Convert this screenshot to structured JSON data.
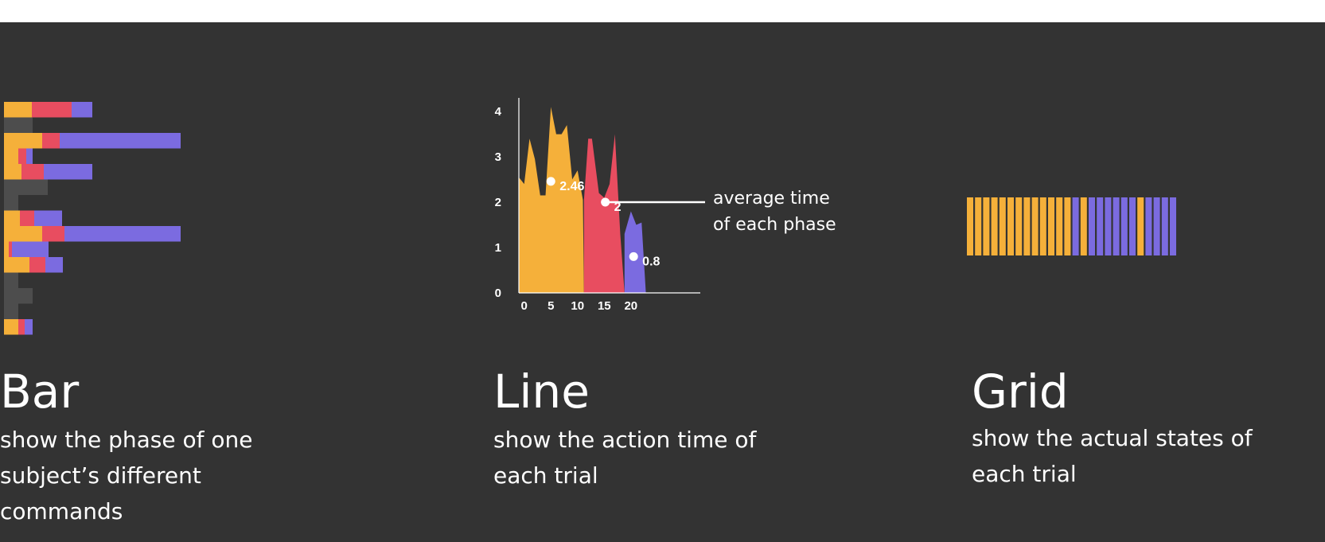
{
  "colors": {
    "background": "#333333",
    "yellow": "#F5B03A",
    "red": "#E84D60",
    "purple": "#7B6BE0",
    "gray": "#4D4D4D",
    "text": "#ffffff"
  },
  "sections": {
    "bar": {
      "title": "Bar",
      "desc_lines": [
        "show the phase of one",
        "subject’s different",
        "commands"
      ]
    },
    "line": {
      "title": "Line",
      "desc_lines": [
        "show the action time of",
        "each trial"
      ]
    },
    "grid": {
      "title": "Grid",
      "desc_lines": [
        "show the actual states of",
        "each trial"
      ]
    }
  },
  "chart_data": [
    {
      "type": "bar",
      "orientation": "horizontal",
      "stacked": true,
      "series_colors": [
        "yellow",
        "red",
        "purple",
        "gray"
      ],
      "rows": [
        [
          {
            "c": "yellow",
            "v": 35
          },
          {
            "c": "red",
            "v": 50
          },
          {
            "c": "purple",
            "v": 26
          }
        ],
        [
          {
            "c": "gray",
            "v": 36
          }
        ],
        [
          {
            "c": "yellow",
            "v": 48
          },
          {
            "c": "red",
            "v": 22
          },
          {
            "c": "purple",
            "v": 152
          }
        ],
        [
          {
            "c": "yellow",
            "v": 18
          },
          {
            "c": "red",
            "v": 10
          },
          {
            "c": "purple",
            "v": 8
          }
        ],
        [
          {
            "c": "yellow",
            "v": 22
          },
          {
            "c": "red",
            "v": 28
          },
          {
            "c": "purple",
            "v": 61
          }
        ],
        [
          {
            "c": "gray",
            "v": 55
          }
        ],
        [
          {
            "c": "gray",
            "v": 18
          }
        ],
        [
          {
            "c": "yellow",
            "v": 20
          },
          {
            "c": "red",
            "v": 18
          },
          {
            "c": "purple",
            "v": 35
          }
        ],
        [
          {
            "c": "yellow",
            "v": 48
          },
          {
            "c": "red",
            "v": 28
          },
          {
            "c": "purple",
            "v": 146
          }
        ],
        [
          {
            "c": "yellow",
            "v": 6
          },
          {
            "c": "red",
            "v": 4
          },
          {
            "c": "purple",
            "v": 46
          }
        ],
        [
          {
            "c": "yellow",
            "v": 32
          },
          {
            "c": "red",
            "v": 20
          },
          {
            "c": "purple",
            "v": 22
          }
        ],
        [
          {
            "c": "gray",
            "v": 18
          }
        ],
        [
          {
            "c": "gray",
            "v": 36
          }
        ],
        [
          {
            "c": "gray",
            "v": 18
          }
        ],
        [
          {
            "c": "yellow",
            "v": 18
          },
          {
            "c": "red",
            "v": 8
          },
          {
            "c": "purple",
            "v": 10
          }
        ]
      ]
    },
    {
      "type": "area",
      "x_ticks": [
        0,
        5,
        10,
        15,
        20
      ],
      "y_ticks": [
        0,
        1,
        2,
        3,
        4
      ],
      "xlim": [
        -1,
        33
      ],
      "ylim": [
        0,
        4.3
      ],
      "series": [
        {
          "color": "yellow",
          "points": [
            [
              -1,
              2.55
            ],
            [
              0,
              2.4
            ],
            [
              1,
              3.4
            ],
            [
              2,
              2.95
            ],
            [
              3,
              2.15
            ],
            [
              4,
              2.15
            ],
            [
              5,
              4.1
            ],
            [
              6,
              3.5
            ],
            [
              7,
              3.5
            ],
            [
              8,
              3.7
            ],
            [
              9,
              2.5
            ],
            [
              10,
              2.7
            ],
            [
              11,
              2.05
            ],
            [
              11.2,
              0
            ],
            [
              -1,
              0
            ]
          ]
        },
        {
          "color": "red",
          "points": [
            [
              11.2,
              2.05
            ],
            [
              12,
              3.4
            ],
            [
              12.7,
              3.4
            ],
            [
              14,
              2.2
            ],
            [
              15,
              2.1
            ],
            [
              16,
              2.4
            ],
            [
              17,
              3.5
            ],
            [
              18,
              1.3
            ],
            [
              18.8,
              0
            ],
            [
              11.2,
              0
            ]
          ]
        },
        {
          "color": "purple",
          "points": [
            [
              18.8,
              1.3
            ],
            [
              20,
              1.8
            ],
            [
              21,
              1.5
            ],
            [
              22,
              1.55
            ],
            [
              22.8,
              0
            ],
            [
              18.8,
              0
            ]
          ]
        }
      ],
      "averages": [
        {
          "x": 5,
          "y": 2.46,
          "label": "2.46"
        },
        {
          "x": 15.2,
          "y": 2,
          "label": "2"
        },
        {
          "x": 20.5,
          "y": 0.8,
          "label": "0.8"
        }
      ],
      "callout": [
        "average time",
        "of each phase"
      ]
    },
    {
      "type": "heatmap",
      "cells": [
        "yellow",
        "yellow",
        "yellow",
        "yellow",
        "yellow",
        "yellow",
        "yellow",
        "yellow",
        "yellow",
        "yellow",
        "yellow",
        "yellow",
        "yellow",
        "purple",
        "yellow",
        "purple",
        "purple",
        "purple",
        "purple",
        "purple",
        "purple",
        "yellow",
        "purple",
        "purple",
        "purple",
        "purple"
      ]
    }
  ]
}
